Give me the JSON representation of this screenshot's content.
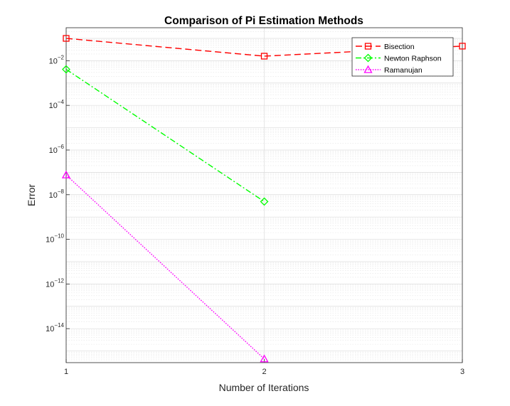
{
  "chart_data": {
    "type": "line",
    "title": "Comparison of Pi Estimation Methods",
    "xlabel": "Number of Iterations",
    "ylabel": "Error",
    "xscale": "linear",
    "yscale": "log",
    "xlim": [
      1,
      3
    ],
    "ylim": [
      3e-16,
      0.3
    ],
    "x_ticks": [
      1,
      2,
      3
    ],
    "y_tick_exponents": [
      -14,
      -12,
      -10,
      -8,
      -6,
      -4,
      -2
    ],
    "grid": true,
    "minor_grid": true,
    "legend_position": "top-right",
    "series": [
      {
        "name": "Bisection",
        "x": [
          1,
          2,
          3
        ],
        "y": [
          0.1,
          0.016,
          0.045
        ],
        "color": "#ff0000",
        "line_style": "dashed",
        "marker": "square"
      },
      {
        "name": "Newton Raphson",
        "x": [
          1,
          2
        ],
        "y": [
          0.0041,
          4.9e-09
        ],
        "color": "#00ff00",
        "line_style": "dash-dot",
        "marker": "diamond"
      },
      {
        "name": "Ramanujan",
        "x": [
          1,
          2
        ],
        "y": [
          7.6e-08,
          4.4e-16
        ],
        "color": "#ff00ff",
        "line_style": "dotted",
        "marker": "triangle"
      }
    ]
  }
}
